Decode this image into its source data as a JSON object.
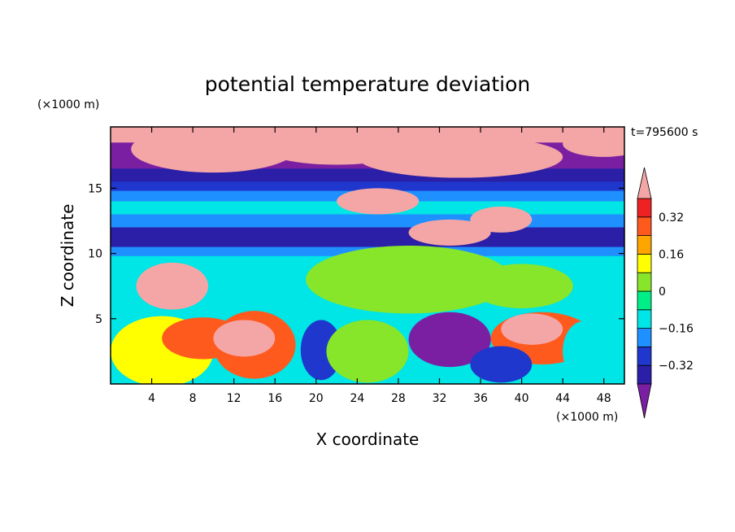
{
  "chart_data": {
    "type": "heatmap",
    "title": "potential temperature deviation",
    "xlabel": "X coordinate",
    "ylabel": "Z coordinate",
    "x_unit": "(×1000 m)",
    "y_unit": "(×1000 m)",
    "time_label": "t=795600 s",
    "xlim": [
      0,
      50
    ],
    "ylim": [
      0,
      19.7
    ],
    "x_ticks": [
      4,
      8,
      12,
      16,
      20,
      24,
      28,
      32,
      36,
      40,
      44,
      48
    ],
    "y_ticks": [
      5,
      10,
      15
    ],
    "x_tick_labels": [
      "4",
      "8",
      "12",
      "16",
      "20",
      "24",
      "28",
      "32",
      "36",
      "40",
      "44",
      "48"
    ],
    "y_tick_labels": [
      "5",
      "10",
      "15"
    ],
    "colorbar": {
      "levels": [
        -0.4,
        -0.32,
        -0.24,
        -0.16,
        -0.08,
        0,
        0.08,
        0.16,
        0.24,
        0.32,
        0.4
      ],
      "labels": [
        {
          "value": 0.32,
          "text": "0.32"
        },
        {
          "value": 0.16,
          "text": "0.16"
        },
        {
          "value": 0,
          "text": "0"
        },
        {
          "value": -0.16,
          "text": "−0.16"
        },
        {
          "value": -0.32,
          "text": "−0.32"
        }
      ],
      "colors": [
        "#7b1fa2",
        "#2a1fa6",
        "#1f37cc",
        "#1e90ff",
        "#00e5e5",
        "#00ee88",
        "#88e62a",
        "#ffff00",
        "#ffa500",
        "#ff5a1e",
        "#ee2222",
        "#f4a6a6"
      ],
      "extend": "both"
    },
    "bands": [
      {
        "z0": 18.5,
        "z1": 19.7,
        "value": 0.45
      },
      {
        "z0": 16.5,
        "z1": 18.5,
        "value": -0.45
      },
      {
        "z0": 15.5,
        "z1": 16.5,
        "value": -0.38
      },
      {
        "z0": 14.8,
        "z1": 15.5,
        "value": -0.3
      },
      {
        "z0": 14.0,
        "z1": 14.8,
        "value": -0.2
      },
      {
        "z0": 13.0,
        "z1": 14.0,
        "value": -0.12
      },
      {
        "z0": 12.0,
        "z1": 13.0,
        "value": -0.2
      },
      {
        "z0": 10.5,
        "z1": 12.0,
        "value": -0.36
      },
      {
        "z0": 9.8,
        "z1": 10.5,
        "value": -0.2
      },
      {
        "z0": 5.5,
        "z1": 9.8,
        "value": -0.1
      },
      {
        "z0": 0,
        "z1": 5.5,
        "value": -0.1
      }
    ],
    "regions": [
      {
        "cx": 10,
        "cz": 18.0,
        "rx": 8,
        "rz": 1.8,
        "value": 0.45
      },
      {
        "cx": 22,
        "cz": 18.0,
        "rx": 7,
        "rz": 1.2,
        "value": 0.45
      },
      {
        "cx": 34,
        "cz": 17.4,
        "rx": 10,
        "rz": 1.6,
        "value": 0.45
      },
      {
        "cx": 48,
        "cz": 18.4,
        "rx": 4,
        "rz": 1.0,
        "value": 0.45
      },
      {
        "cx": 26,
        "cz": 14.0,
        "rx": 4,
        "rz": 1.0,
        "value": 0.45
      },
      {
        "cx": 33,
        "cz": 11.6,
        "rx": 4,
        "rz": 1.0,
        "value": 0.45
      },
      {
        "cx": 38,
        "cz": 12.6,
        "rx": 3,
        "rz": 1.0,
        "value": 0.45
      },
      {
        "cx": 6,
        "cz": 7.5,
        "rx": 3.5,
        "rz": 1.8,
        "value": 0.45
      },
      {
        "cx": 29,
        "cz": 8.0,
        "rx": 10,
        "rz": 2.6,
        "value": 0.02
      },
      {
        "cx": 40,
        "cz": 7.5,
        "rx": 5,
        "rz": 1.7,
        "value": 0.02
      },
      {
        "cx": 5,
        "cz": 2.5,
        "rx": 5,
        "rz": 2.7,
        "value": 0.12
      },
      {
        "cx": 9,
        "cz": 3.5,
        "rx": 4,
        "rz": 1.6,
        "value": 0.25
      },
      {
        "cx": 14,
        "cz": 3.0,
        "rx": 4,
        "rz": 2.6,
        "value": 0.3
      },
      {
        "cx": 13,
        "cz": 3.5,
        "rx": 3,
        "rz": 1.4,
        "value": 0.45
      },
      {
        "cx": 20.5,
        "cz": 2.6,
        "rx": 2,
        "rz": 2.3,
        "value": -0.3
      },
      {
        "cx": 25,
        "cz": 2.5,
        "rx": 4,
        "rz": 2.4,
        "value": 0.04
      },
      {
        "cx": 33,
        "cz": 3.4,
        "rx": 4,
        "rz": 2.1,
        "value": -0.45
      },
      {
        "cx": 42,
        "cz": 3.5,
        "rx": 5,
        "rz": 2.0,
        "value": 0.3
      },
      {
        "cx": 41,
        "cz": 4.2,
        "rx": 3,
        "rz": 1.2,
        "value": 0.45
      },
      {
        "cx": 46,
        "cz": 2.5,
        "rx": 2,
        "rz": 2.3,
        "value": -0.12
      },
      {
        "cx": 38,
        "cz": 1.5,
        "rx": 3,
        "rz": 1.4,
        "value": -0.3
      }
    ]
  }
}
